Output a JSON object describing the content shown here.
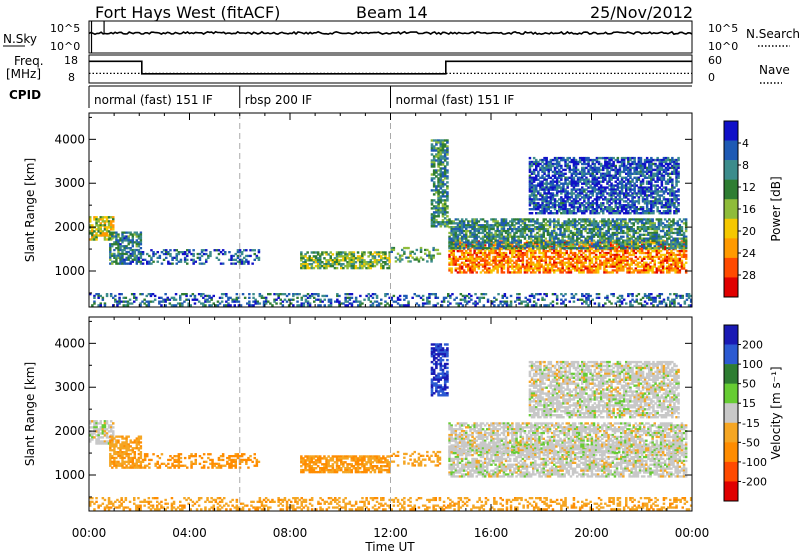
{
  "header": {
    "station": "Fort Hays West (fitACF)",
    "beam": "Beam 14",
    "date": "25/Nov/2012"
  },
  "nsky_panel": {
    "left_label": "N.Sky",
    "right_label": "N.Search",
    "left_ticks": [
      "10^5",
      "10^0"
    ],
    "right_ticks": [
      "10^5",
      "10^0"
    ]
  },
  "freq_panel": {
    "left_label_1": "Freq.",
    "left_label_2": "[MHz]",
    "right_label": "Nave",
    "left_ticks": [
      "18",
      "8"
    ],
    "right_ticks": [
      "60",
      "0"
    ],
    "freq_segments": [
      {
        "t0": 0.0,
        "t1": 2.1,
        "mhz": 16.5
      },
      {
        "t0": 2.1,
        "t1": 14.2,
        "mhz": 10.8
      },
      {
        "t0": 14.2,
        "t1": 24.0,
        "mhz": 16.5
      }
    ],
    "nave_level": 18
  },
  "cpid_panel": {
    "label": "CPID",
    "modes": [
      {
        "t0": 0.0,
        "t1": 6.0,
        "label": "normal (fast) 151 IF"
      },
      {
        "t0": 6.0,
        "t1": 12.0,
        "label": "rbsp 200 IF"
      },
      {
        "t0": 12.0,
        "t1": 24.0,
        "label": "normal (fast) 151 IF"
      }
    ]
  },
  "x_axis": {
    "title": "Time UT",
    "ticks": [
      "00:00",
      "04:00",
      "08:00",
      "12:00",
      "16:00",
      "20:00",
      "00:00"
    ],
    "range_hours": [
      0,
      24
    ]
  },
  "chart_data": [
    {
      "type": "heatmap",
      "panel": "power",
      "ylabel": "Slant Range [km]",
      "y_ticks": [
        "1000",
        "2000",
        "3000",
        "4000"
      ],
      "ylim": [
        180,
        4600
      ],
      "xlim": [
        0,
        24
      ],
      "colorbar_label": "Power [dB]",
      "colorbar_ticks": [
        "4",
        "8",
        "12",
        "16",
        "20",
        "24",
        "28"
      ],
      "colorbar_range": [
        0,
        32
      ],
      "colors": [
        "#1010c8",
        "#1e5ab4",
        "#3c8c8c",
        "#2e7d32",
        "#8fbc3a",
        "#f5c800",
        "#ff9a00",
        "#ff4a00",
        "#e00000"
      ],
      "echo_regions": [
        {
          "t0": 0.0,
          "t1": 1.0,
          "r0": 1700,
          "r1": 2250,
          "level": 18
        },
        {
          "t0": 0.8,
          "t1": 2.1,
          "r0": 1150,
          "r1": 1900,
          "level": 9
        },
        {
          "t0": 2.1,
          "t1": 6.8,
          "r0": 1150,
          "r1": 1500,
          "level": 6
        },
        {
          "t0": 8.4,
          "t1": 12.0,
          "r0": 1050,
          "r1": 1450,
          "level": 14
        },
        {
          "t0": 12.0,
          "t1": 14.0,
          "r0": 1200,
          "r1": 1550,
          "level": 12
        },
        {
          "t0": 13.6,
          "t1": 14.3,
          "r0": 2000,
          "r1": 4000,
          "level": 10
        },
        {
          "t0": 14.3,
          "t1": 23.8,
          "r0": 950,
          "r1": 1700,
          "level": 24
        },
        {
          "t0": 14.3,
          "t1": 23.8,
          "r0": 1500,
          "r1": 2200,
          "level": 10
        },
        {
          "t0": 17.5,
          "t1": 23.5,
          "r0": 2300,
          "r1": 3600,
          "level": 5
        },
        {
          "t0": 0.0,
          "t1": 24.0,
          "r0": 200,
          "r1": 500,
          "level": 7
        }
      ]
    },
    {
      "type": "heatmap",
      "panel": "velocity",
      "ylabel": "Slant Range [km]",
      "y_ticks": [
        "1000",
        "2000",
        "3000",
        "4000"
      ],
      "ylim": [
        180,
        4600
      ],
      "xlim": [
        0,
        24
      ],
      "colorbar_label": "Velocity [m s⁻¹]",
      "colorbar_ticks": [
        "200",
        "100",
        "50",
        "15",
        "-15",
        "-50",
        "-100",
        "-200"
      ],
      "colorbar_range": [
        -250,
        250
      ],
      "colors": [
        "#1a1ab4",
        "#2c5ad2",
        "#2e7d32",
        "#66cc33",
        "#c8c8c8",
        "#f5a623",
        "#ff8c00",
        "#ff4a00",
        "#e00000"
      ],
      "echo_regions": [
        {
          "t0": 0.0,
          "t1": 1.0,
          "r0": 1700,
          "r1": 2250,
          "vel": 0
        },
        {
          "t0": 0.8,
          "t1": 2.1,
          "r0": 1150,
          "r1": 1900,
          "vel": -40
        },
        {
          "t0": 2.1,
          "t1": 6.8,
          "r0": 1150,
          "r1": 1500,
          "vel": -60
        },
        {
          "t0": 8.4,
          "t1": 12.0,
          "r0": 1050,
          "r1": 1450,
          "vel": -50
        },
        {
          "t0": 12.0,
          "t1": 14.0,
          "r0": 1200,
          "r1": 1550,
          "vel": -40
        },
        {
          "t0": 13.6,
          "t1": 14.3,
          "r0": 2800,
          "r1": 4000,
          "vel": 150
        },
        {
          "t0": 14.3,
          "t1": 23.8,
          "r0": 950,
          "r1": 1700,
          "vel": 0
        },
        {
          "t0": 14.3,
          "t1": 23.8,
          "r0": 1500,
          "r1": 2200,
          "vel": 0
        },
        {
          "t0": 17.5,
          "t1": 23.5,
          "r0": 2300,
          "r1": 3600,
          "vel": 0
        },
        {
          "t0": 0.0,
          "t1": 24.0,
          "r0": 200,
          "r1": 500,
          "vel": -40
        }
      ]
    }
  ]
}
